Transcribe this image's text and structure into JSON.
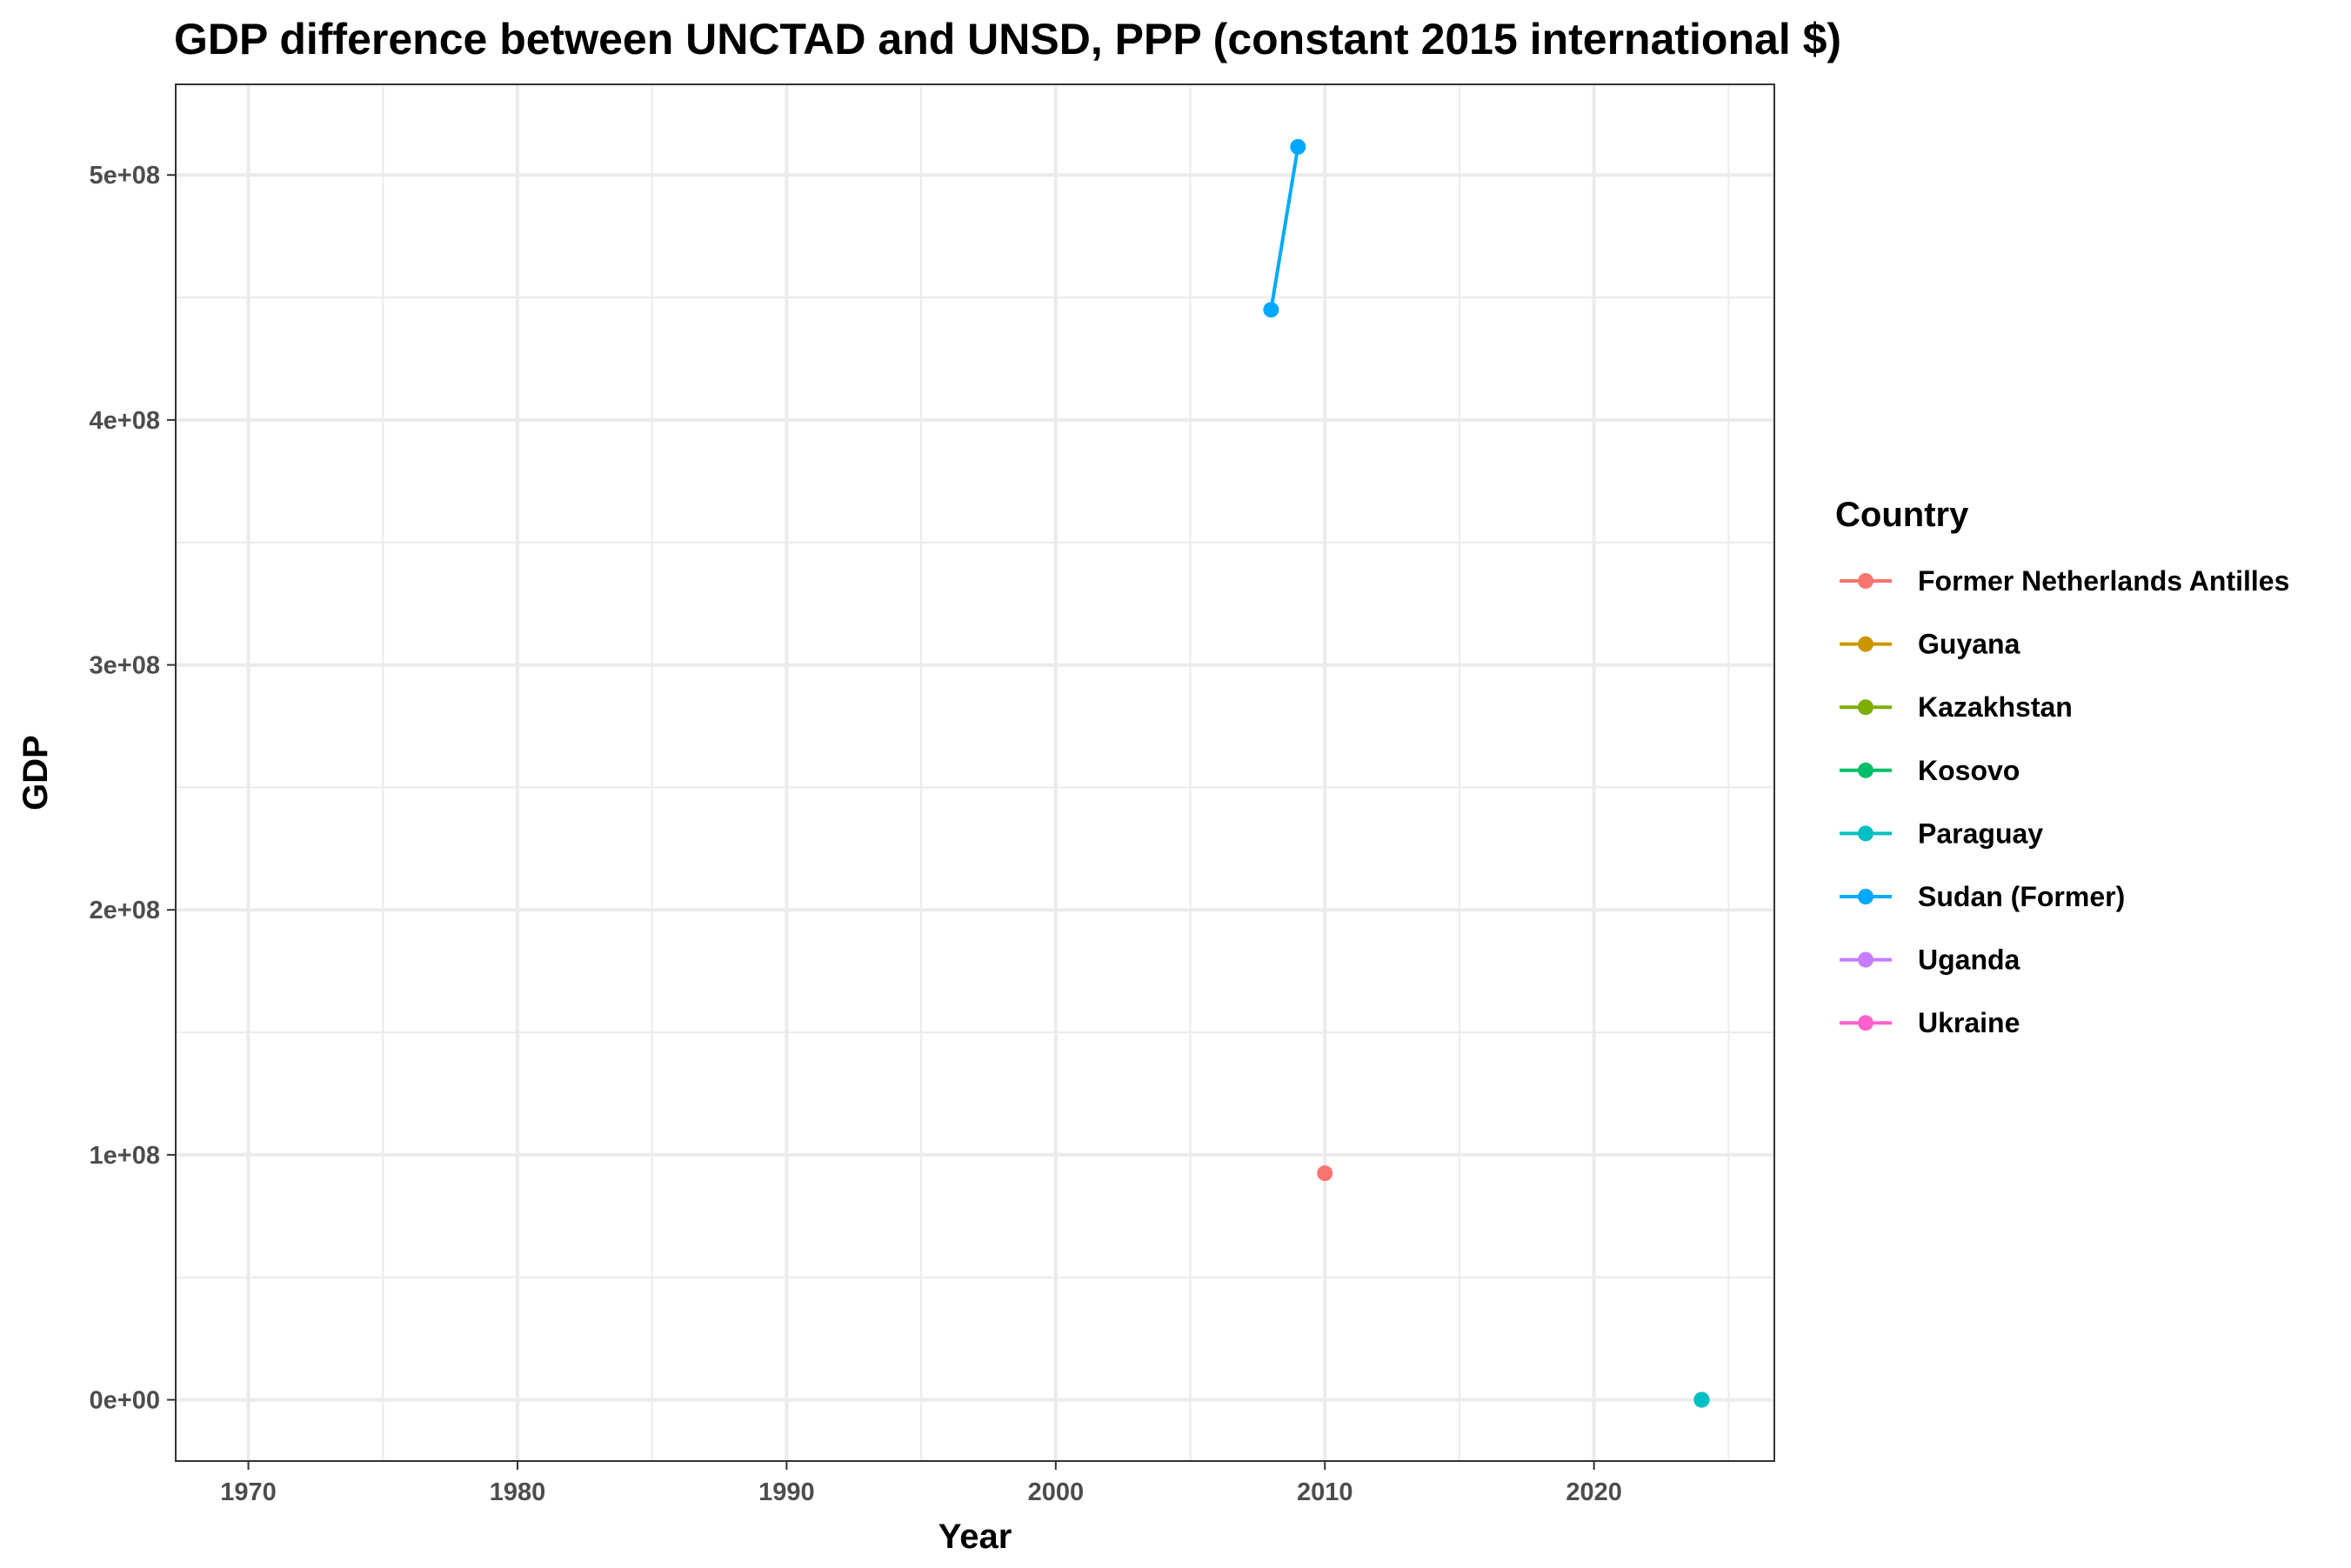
{
  "chart_data": {
    "type": "line",
    "title": "GDP difference between UNCTAD and UNSD, PPP (constant 2015 international $)",
    "xlabel": "Year",
    "ylabel": "GDP",
    "xlim": [
      1967.3,
      2026.7
    ],
    "ylim": [
      -25000000,
      537000000
    ],
    "x_ticks": [
      1970,
      1980,
      1990,
      2000,
      2010,
      2020
    ],
    "x_tick_labels": [
      "1970",
      "1980",
      "1990",
      "2000",
      "2010",
      "2020"
    ],
    "x_minor_ticks": [
      1975,
      1985,
      1995,
      2005,
      2015,
      2025
    ],
    "y_ticks": [
      0,
      100000000,
      200000000,
      300000000,
      400000000,
      500000000
    ],
    "y_tick_labels": [
      "0e+00",
      "1e+08",
      "2e+08",
      "3e+08",
      "4e+08",
      "5e+08"
    ],
    "y_minor_ticks": [
      50000000,
      150000000,
      250000000,
      350000000,
      450000000
    ],
    "grid": true,
    "legend_position": "right",
    "legend_title": "Country",
    "series": [
      {
        "name": "Former Netherlands Antilles",
        "color": "#F8766D",
        "points": [
          [
            2010,
            92500000
          ]
        ]
      },
      {
        "name": "Guyana",
        "color": "#CD9600",
        "points": [
          [
            2024,
            0
          ]
        ]
      },
      {
        "name": "Kazakhstan",
        "color": "#7CAE00",
        "points": [
          [
            2024,
            0
          ]
        ]
      },
      {
        "name": "Kosovo",
        "color": "#00BE67",
        "points": [
          [
            2024,
            0
          ]
        ]
      },
      {
        "name": "Paraguay",
        "color": "#00BFC4",
        "points": [
          [
            2024,
            0
          ]
        ]
      },
      {
        "name": "Sudan (Former)",
        "color": "#00A9FF",
        "points": [
          [
            2008,
            445000000
          ],
          [
            2009,
            511500000
          ]
        ]
      },
      {
        "name": "Uganda",
        "color": "#C77CFF",
        "points": []
      },
      {
        "name": "Ukraine",
        "color": "#FF61CC",
        "points": []
      }
    ]
  }
}
